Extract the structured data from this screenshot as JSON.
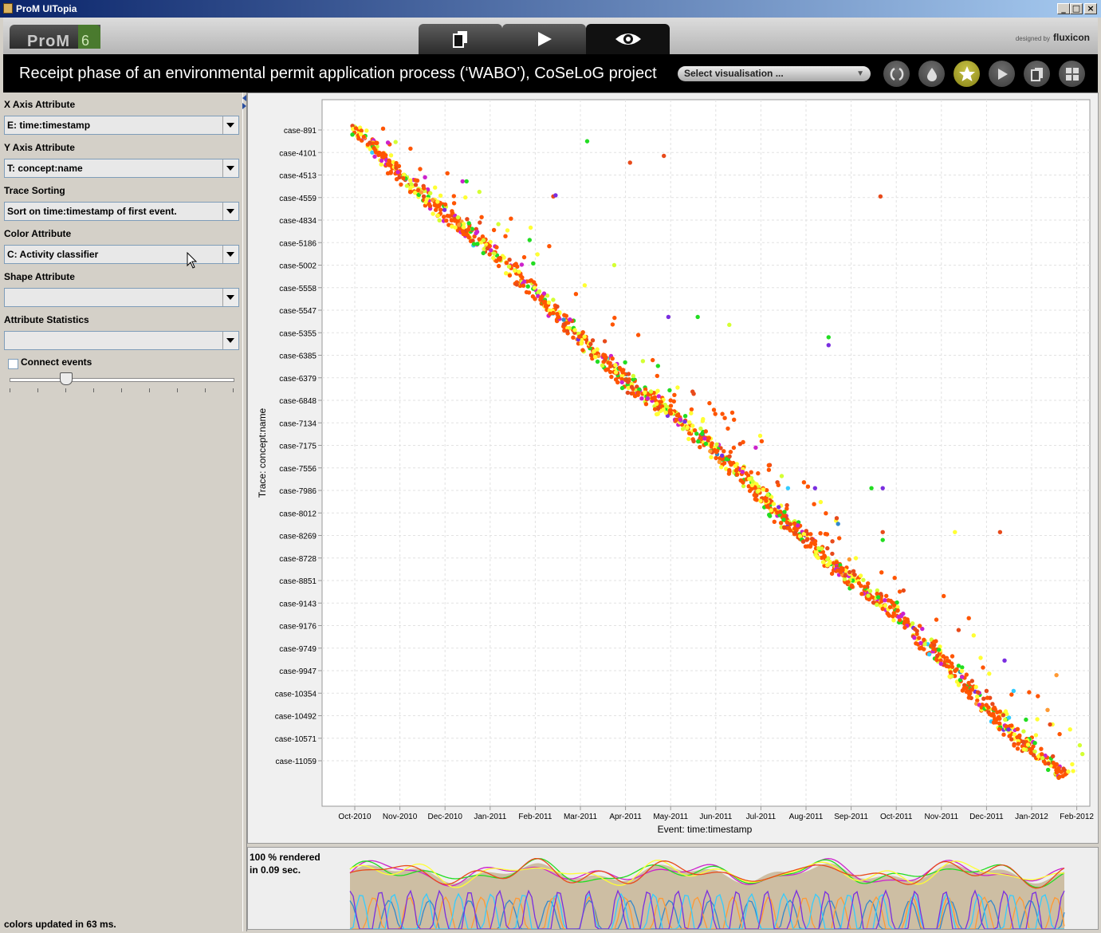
{
  "window": {
    "title": "ProM UITopia",
    "minimize": "_",
    "maximize": "□",
    "close": "×"
  },
  "topbar": {
    "logo_text": "ProM",
    "logo_version": "6",
    "designed_by": "designed by",
    "designed_brand": "fluxicon"
  },
  "header": {
    "title": "Receipt phase of an environmental permit application process (‘WABO’), CoSeLoG project",
    "select_visualisation": "Select visualisation ..."
  },
  "left": {
    "x_axis_label": "X Axis Attribute",
    "x_axis_value": "E: time:timestamp",
    "y_axis_label": "Y Axis Attribute",
    "y_axis_value": "T: concept:name",
    "sort_label": "Trace Sorting",
    "sort_value": "Sort on time:timestamp of first event.",
    "color_label": "Color Attribute",
    "color_value": "C: Activity classifier",
    "shape_label": "Shape Attribute",
    "shape_value": "",
    "stats_label": "Attribute Statistics",
    "stats_value": "",
    "connect_label": "Connect events",
    "status": "colors updated in 63 ms."
  },
  "bottom": {
    "rendered_line1": "100 % rendered",
    "rendered_line2": "in 0.09 sec."
  },
  "chart_data": {
    "type": "scatter",
    "xlabel": "Event: time:timestamp",
    "ylabel": "Trace: concept:name",
    "x_ticks": [
      "Oct-2010",
      "Nov-2010",
      "Dec-2010",
      "Jan-2011",
      "Feb-2011",
      "Mar-2011",
      "Apr-2011",
      "May-2011",
      "Jun-2011",
      "Jul-2011",
      "Aug-2011",
      "Sep-2011",
      "Oct-2011",
      "Nov-2011",
      "Dec-2011",
      "Jan-2012",
      "Feb-2012"
    ],
    "y_ticks": [
      "case-891",
      "case-4101",
      "case-4513",
      "case-4559",
      "case-4834",
      "case-5186",
      "case-5002",
      "case-5558",
      "case-5547",
      "case-5355",
      "case-6385",
      "case-6379",
      "case-6848",
      "case-7134",
      "case-7175",
      "case-7556",
      "case-7986",
      "case-8012",
      "case-8269",
      "case-8728",
      "case-8851",
      "case-9143",
      "case-9176",
      "case-9749",
      "case-9947",
      "case-10354",
      "case-10492",
      "case-10571",
      "case-11059"
    ],
    "grid": true,
    "palette": [
      "#ff5500",
      "#e84a1a",
      "#ffff33",
      "#d4ff33",
      "#22dd22",
      "#cc22cc",
      "#7a2ee0",
      "#3388cc",
      "#ff9933",
      "#33ccff"
    ],
    "trend": {
      "start": {
        "x_month": 0.0,
        "case_index": 0
      },
      "end": {
        "x_month": 15.65,
        "case_index": 28.6
      }
    },
    "outliers": [
      {
        "x_month": 5.15,
        "case_index": 0.5,
        "color": "#22dd22"
      },
      {
        "x_month": 6.1,
        "case_index": 1.45,
        "color": "#e84a1a"
      },
      {
        "x_month": 6.85,
        "case_index": 1.15,
        "color": "#e84a1a"
      },
      {
        "x_month": 4.4,
        "case_index": 2.95,
        "color": "#e84a1a"
      },
      {
        "x_month": 4.45,
        "case_index": 2.9,
        "color": "#7a2ee0"
      },
      {
        "x_month": 11.65,
        "case_index": 2.95,
        "color": "#e84a1a"
      },
      {
        "x_month": 5.75,
        "case_index": 6.0,
        "color": "#d4ff33"
      },
      {
        "x_month": 6.95,
        "case_index": 8.3,
        "color": "#7a2ee0"
      },
      {
        "x_month": 7.6,
        "case_index": 8.3,
        "color": "#22dd22"
      },
      {
        "x_month": 8.3,
        "case_index": 8.65,
        "color": "#d4ff33"
      },
      {
        "x_month": 10.5,
        "case_index": 9.2,
        "color": "#22dd22"
      },
      {
        "x_month": 10.5,
        "case_index": 9.55,
        "color": "#7a2ee0"
      },
      {
        "x_month": 11.45,
        "case_index": 15.9,
        "color": "#22dd22"
      },
      {
        "x_month": 11.7,
        "case_index": 15.9,
        "color": "#7a2ee0"
      },
      {
        "x_month": 10.2,
        "case_index": 15.9,
        "color": "#7a2ee0"
      },
      {
        "x_month": 9.6,
        "case_index": 15.9,
        "color": "#33ccff"
      },
      {
        "x_month": 13.3,
        "case_index": 17.85,
        "color": "#ffff33"
      },
      {
        "x_month": 14.3,
        "case_index": 17.85,
        "color": "#e84a1a"
      },
      {
        "x_month": 11.7,
        "case_index": 17.85,
        "color": "#e84a1a"
      },
      {
        "x_month": 11.7,
        "case_index": 18.2,
        "color": "#22dd22"
      },
      {
        "x_month": 14.4,
        "case_index": 23.55,
        "color": "#7a2ee0"
      },
      {
        "x_month": 14.6,
        "case_index": 24.9,
        "color": "#33ccff"
      },
      {
        "x_month": 15.55,
        "case_index": 24.2,
        "color": "#ff9933"
      },
      {
        "x_month": 14.0,
        "case_index": 24.9,
        "color": "#e84a1a"
      }
    ]
  },
  "overview": {
    "type": "area",
    "series_colors": [
      "#cc22cc",
      "#22dd22",
      "#ffff33",
      "#e84a1a",
      "#3388cc",
      "#ff9933",
      "#33ccff",
      "#7a2ee0"
    ],
    "fill": "#c9b89a"
  }
}
